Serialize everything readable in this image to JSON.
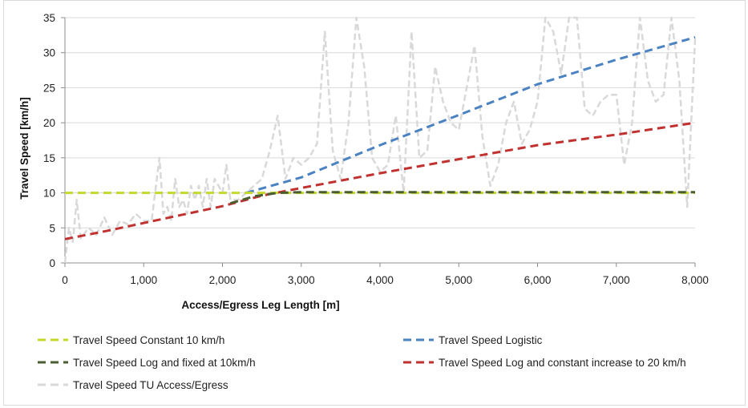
{
  "chart_data": {
    "type": "line",
    "xlabel": "Access/Egress Leg Length [m]",
    "ylabel": "Travel Speed [km/h]",
    "xlim": [
      0,
      8000
    ],
    "ylim": [
      0,
      35
    ],
    "x_ticks": [
      0,
      1000,
      2000,
      3000,
      4000,
      5000,
      6000,
      7000,
      8000
    ],
    "x_tick_labels": [
      "0",
      "1,000",
      "2,000",
      "3,000",
      "4,000",
      "5,000",
      "6,000",
      "7,000",
      "8,000"
    ],
    "y_ticks": [
      0,
      5,
      10,
      15,
      20,
      25,
      30,
      35
    ],
    "y_tick_labels": [
      "0",
      "5",
      "10",
      "15",
      "20",
      "25",
      "30",
      "35"
    ],
    "grid": "horizontal",
    "legend_position": "bottom",
    "series": [
      {
        "name": "Travel Speed Constant 10 km/h",
        "color": "#c5d92c",
        "x": [
          0,
          8000
        ],
        "y": [
          10,
          10
        ]
      },
      {
        "name": "Travel Speed Logistic",
        "color": "#4a82c2",
        "x": [
          2300,
          3000,
          4000,
          5000,
          6000,
          7000,
          8000
        ],
        "y": [
          10,
          12.2,
          16.8,
          21.1,
          25.5,
          29.0,
          32.2
        ]
      },
      {
        "name": "Travel Speed Log and fixed at 10km/h",
        "color": "#4b5e32",
        "x": [
          2100,
          2400,
          2700,
          3000,
          4000,
          5000,
          6000,
          7000,
          8000
        ],
        "y": [
          8.5,
          9.5,
          10.0,
          10.1,
          10.1,
          10.1,
          10.1,
          10.1,
          10.1
        ]
      },
      {
        "name": "Travel Speed Log and constant increase to 20 km/h",
        "color": "#c0312f",
        "x": [
          0,
          500,
          1000,
          1500,
          2000,
          2500,
          3000,
          4000,
          5000,
          6000,
          7000,
          8000
        ],
        "y": [
          3.4,
          4.5,
          5.7,
          6.9,
          8.1,
          9.6,
          10.7,
          12.8,
          14.8,
          16.8,
          18.3,
          20.0
        ]
      },
      {
        "name": "Travel Speed TU Access/Egress",
        "color": "#d9d9d9",
        "x": [
          0,
          50,
          100,
          150,
          200,
          300,
          400,
          500,
          600,
          700,
          800,
          900,
          1000,
          1100,
          1200,
          1250,
          1300,
          1350,
          1400,
          1450,
          1500,
          1550,
          1600,
          1650,
          1700,
          1750,
          1800,
          1850,
          1900,
          2000,
          2050,
          2100,
          2200,
          2300,
          2400,
          2500,
          2600,
          2700,
          2800,
          2900,
          3000,
          3100,
          3200,
          3300,
          3400,
          3500,
          3600,
          3700,
          3800,
          3900,
          4000,
          4100,
          4200,
          4300,
          4400,
          4500,
          4600,
          4700,
          4800,
          4900,
          5000,
          5100,
          5200,
          5300,
          5400,
          5500,
          5600,
          5700,
          5800,
          5900,
          6000,
          6100,
          6200,
          6300,
          6400,
          6500,
          6600,
          6700,
          6800,
          6900,
          7000,
          7100,
          7200,
          7300,
          7400,
          7500,
          7600,
          7700,
          7800,
          7900,
          8000
        ],
        "y": [
          0,
          5,
          3,
          9,
          3.5,
          5,
          4,
          6.5,
          4,
          6,
          5.5,
          7,
          6,
          6,
          15,
          7,
          8,
          6,
          12,
          8,
          9,
          7,
          11,
          9,
          11,
          8,
          12,
          8,
          12,
          10,
          14,
          9,
          9,
          10,
          11,
          12,
          16,
          21,
          12,
          15,
          14,
          15,
          17,
          33,
          16,
          12,
          20,
          35,
          28,
          15,
          13,
          14,
          21,
          10,
          33,
          15,
          16,
          28,
          23,
          20,
          19,
          25,
          31,
          18,
          11,
          14,
          20,
          23,
          17,
          19,
          23,
          35,
          33,
          27,
          35,
          35,
          22,
          21,
          23,
          24,
          24,
          14,
          20,
          35,
          26,
          23,
          24,
          35,
          26,
          8,
          32
        ]
      }
    ]
  }
}
